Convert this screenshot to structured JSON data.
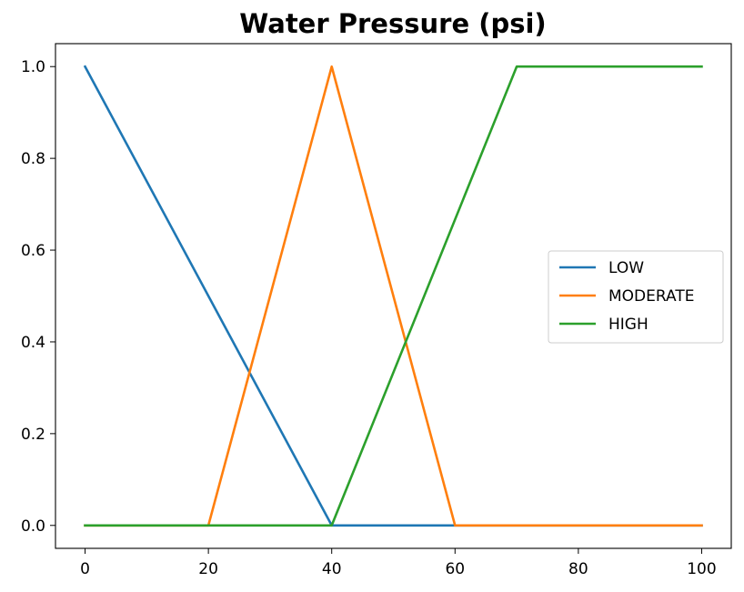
{
  "chart_data": {
    "type": "line",
    "title": "Water Pressure (psi)",
    "xlabel": "",
    "ylabel": "",
    "xlim": [
      -4.8,
      104.8
    ],
    "ylim": [
      -0.05,
      1.05
    ],
    "xticks": [
      0,
      20,
      40,
      60,
      80,
      100
    ],
    "xtick_labels": [
      "0",
      "20",
      "40",
      "60",
      "80",
      "100"
    ],
    "yticks": [
      0.0,
      0.2,
      0.4,
      0.6,
      0.8,
      1.0
    ],
    "ytick_labels": [
      "0.0",
      "0.2",
      "0.4",
      "0.6",
      "0.8",
      "1.0"
    ],
    "grid": false,
    "legend_position": "center-right",
    "series": [
      {
        "name": "LOW",
        "color": "#1f77b4",
        "x": [
          0,
          40,
          100
        ],
        "y": [
          1.0,
          0.0,
          0.0
        ]
      },
      {
        "name": "MODERATE",
        "color": "#ff7f0e",
        "x": [
          0,
          20,
          40,
          60,
          100
        ],
        "y": [
          0.0,
          0.0,
          1.0,
          0.0,
          0.0
        ]
      },
      {
        "name": "HIGH",
        "color": "#2ca02c",
        "x": [
          0,
          40,
          70,
          100
        ],
        "y": [
          0.0,
          0.0,
          1.0,
          1.0
        ]
      }
    ]
  }
}
